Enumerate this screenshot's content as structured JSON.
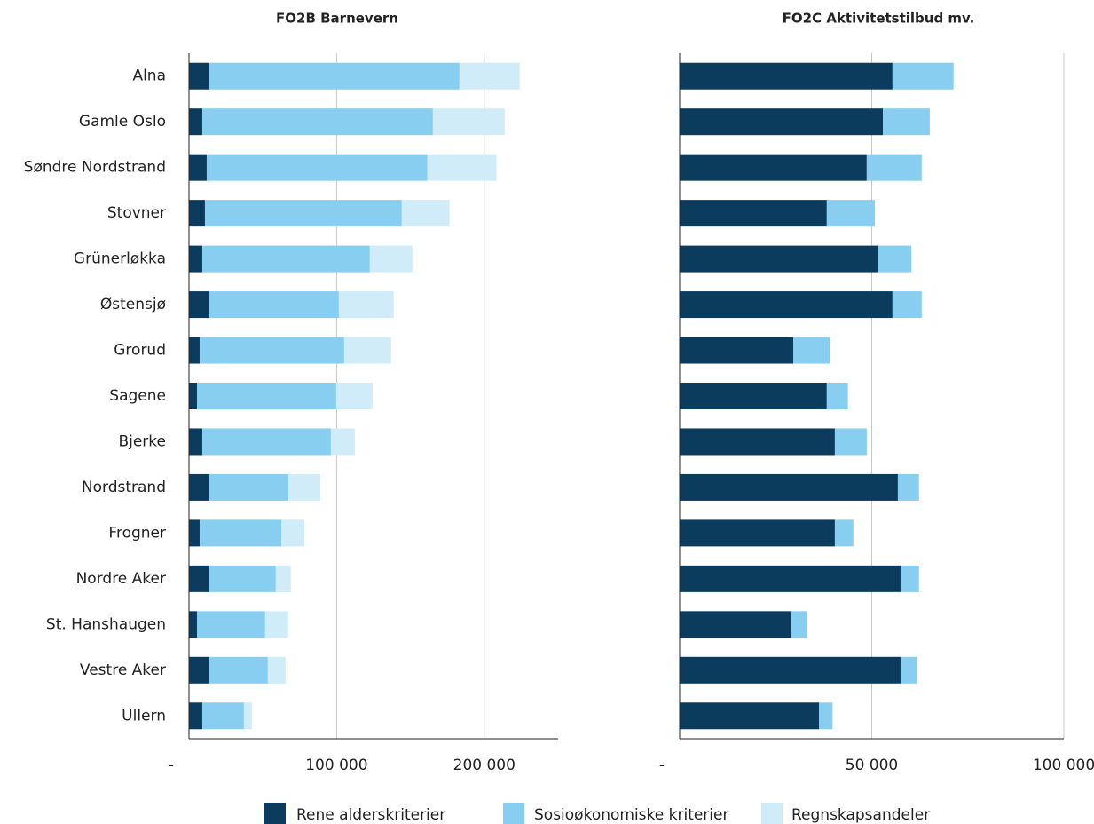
{
  "chart_data": [
    {
      "type": "bar",
      "orientation": "horizontal",
      "stacked": true,
      "title": "FO2B Barnevern",
      "categories": [
        "Alna",
        "Gamle Oslo",
        "Søndre Nordstrand",
        "Stovner",
        "Grünerløkka",
        "Østensjø",
        "Grorud",
        "Sagene",
        "Bjerke",
        "Nordstrand",
        "Frogner",
        "Nordre Aker",
        "St. Hanshaugen",
        "Vestre Aker",
        "Ullern"
      ],
      "series": [
        {
          "name": "Rene alderskriterier",
          "color": "#0b3c5d",
          "values": [
            13800,
            9000,
            12000,
            10800,
            9000,
            13800,
            7200,
            5400,
            9000,
            13800,
            7200,
            13800,
            5400,
            13800,
            9000
          ]
        },
        {
          "name": "Sosioøkonomiske kriterier",
          "color": "#87cef0",
          "values": [
            169400,
            156200,
            149500,
            133300,
            113500,
            87700,
            97900,
            94300,
            87100,
            53500,
            55300,
            45000,
            46200,
            39600,
            28200
          ]
        },
        {
          "name": "Regnskapsandeler",
          "color": "#d1ecf9",
          "values": [
            40800,
            48600,
            46800,
            32400,
            28800,
            37200,
            31800,
            24600,
            16200,
            21600,
            15600,
            10200,
            15600,
            12000,
            5400
          ]
        }
      ],
      "xlim": [
        0,
        250000
      ],
      "xticks": [
        {
          "value": 0,
          "label": "-"
        },
        {
          "value": 100000,
          "label": "100 000"
        },
        {
          "value": 200000,
          "label": "200 000"
        }
      ],
      "grid": true,
      "legend": "bottom"
    },
    {
      "type": "bar",
      "orientation": "horizontal",
      "stacked": true,
      "title": "FO2C Aktivitetstilbud mv.",
      "series": [
        {
          "color": "#0b3c5d",
          "values": [
            55400,
            52900,
            48700,
            38300,
            51500,
            55400,
            29600,
            38300,
            40400,
            56800,
            40400,
            57500,
            28900,
            57500,
            36300
          ]
        },
        {
          "color": "#87cef0",
          "values": [
            15900,
            12200,
            14300,
            12500,
            8800,
            7600,
            9500,
            5500,
            8300,
            5500,
            4800,
            4800,
            4200,
            4200,
            3500
          ]
        }
      ],
      "xlim": [
        0,
        100000
      ],
      "xticks": [
        {
          "value": 0,
          "label": "-"
        },
        {
          "value": 50000,
          "label": "50 000"
        },
        {
          "value": 100000,
          "label": "100 000"
        }
      ],
      "grid": true
    }
  ]
}
